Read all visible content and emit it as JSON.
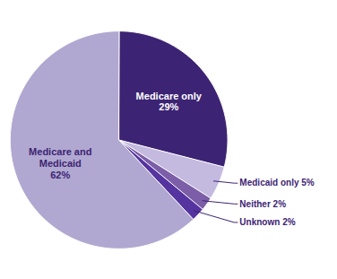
{
  "chart_data": {
    "type": "pie",
    "categories": [
      "Medicare only\n29%",
      "Medicaid only 5%",
      "Neither 2%",
      "Unknown 2%",
      "Medicare and\nMedicaid\n62%"
    ],
    "values": [
      29,
      5,
      2,
      2,
      62
    ],
    "colors": [
      "#3d2373",
      "#c4bae0",
      "#7b5ea7",
      "#5534a0",
      "#b0a8d0"
    ]
  }
}
